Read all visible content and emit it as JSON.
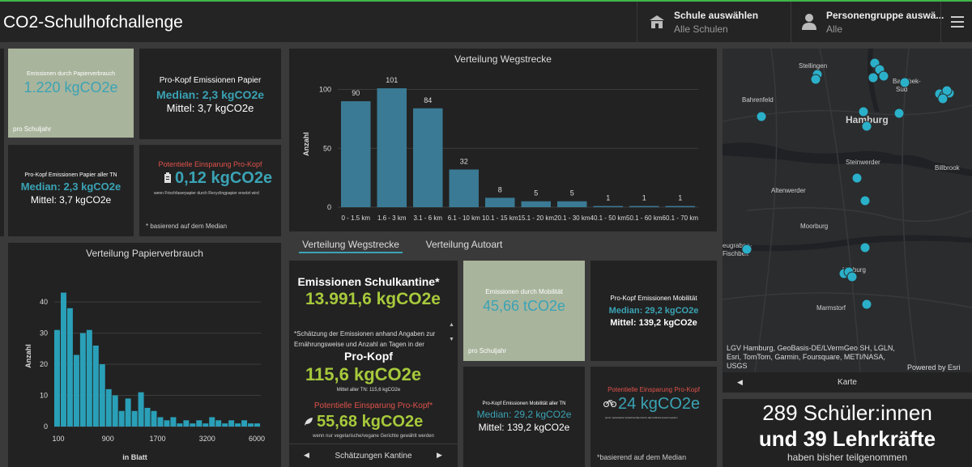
{
  "header": {
    "title": "CO2-Schulhofchallenge",
    "school_label": "Schule auswählen",
    "school_value": "Alle Schulen",
    "group_label": "Personengruppe auswä...",
    "group_value": "Alle"
  },
  "paper_total": {
    "label": "Emissionen durch Papierverbrauch",
    "value": "1.220 kgCO2e",
    "sub": "pro Schuljahr"
  },
  "paper_per_capita": {
    "title": "Pro-Kopf Emissionen Papier",
    "median": "Median: 2,3 kgCO2e",
    "mean": "Mittel: 3,7 kgCO2e"
  },
  "paper_all": {
    "title": "Pro-Kopf Emissionen Papier aller TN",
    "median": "Median: 2,3 kgCO2e",
    "mean": "Mittel: 3,7 kgCO2e"
  },
  "paper_saving": {
    "title": "Potentielle Einsparung Pro-Kopf",
    "value": "0,12 kgCO2e",
    "note": "wenn Frischfaserpapier durch Recyclingpapier ersetzt wird",
    "footnote": "* basierend auf dem Median"
  },
  "distance_chart": {
    "title": "Verteilung Wegstrecke"
  },
  "distance_tabs": [
    "Verteilung Wegstrecke",
    "Verteilung Autoart"
  ],
  "paper_chart": {
    "title": "Verteilung Papierverbrauch"
  },
  "canteen": {
    "title": "Emissionen Schulkantine*",
    "value": "13.991,6 kgCO2e",
    "note": "*Schätzung der Emissionen anhand Angaben zur Ernährungsweise und Anzahl an Tagen in der",
    "percap_title": "Pro-Kopf",
    "percap_value": "115,6 kgCO2e",
    "percap_sub": "Mittel aller TN: 115,6 kgCO2e",
    "saving_title": "Potentielle Einsparung Pro-Kopf*",
    "saving_value": "55,68 kgCO2e",
    "saving_note": "wenn nur vegetarische/vegane Gerichte gewählt werden",
    "nav_label": "Schätzungen Kantine"
  },
  "mobility_total": {
    "label": "Emissionen durch Mobilität",
    "value": "45,66 tCO2e",
    "sub": "pro Schuljahr"
  },
  "mobility_per_capita": {
    "title": "Pro-Kopf Emissionen Mobilität",
    "median": "Median: 29,2 kgCO2e",
    "mean": "Mittel: 139,2 kgCO2e"
  },
  "mobility_all": {
    "title": "Pro-Kopf Emissionen Mobilität aller TN",
    "median": "Median: 29,2 kgCO2e",
    "mean": "Mittel: 139,2 kgCO2e"
  },
  "mobility_saving": {
    "title": "Potentielle Einsparung Pro-Kopf",
    "value": "24 kgCO2e",
    "note": "wenn motorisierte Verkehrsmittel durch das Fahrrad ersetzt werden",
    "footnote": "*basierend auf dem Median"
  },
  "map": {
    "places": [
      "Stellingen",
      "Barmbek-Süd",
      "Bahrenfeld",
      "Hamburg",
      "Steinwerder",
      "Billbrook",
      "Altenwerder",
      "Moorburg",
      "Neugraben-Fischbek",
      "Harburg",
      "Marmstorf"
    ],
    "attribution": "LGV Hamburg, GeoBasis-DE/LVermGeo SH, LGLN, Esri, TomTom, Garmin, Foursquare, METI/NASA, USGS",
    "powered": "Powered by Esri",
    "nav_label": "Karte"
  },
  "participants": {
    "line1": "289 Schüler:innen",
    "line2": "und 39 Lehrkräfte",
    "line3": "haben bisher teilgenommen"
  },
  "chart_data": [
    {
      "type": "bar",
      "title": "Verteilung Wegstrecke",
      "ylabel": "Anzahl",
      "xlabel": "",
      "categories": [
        "0 - 1.5 km",
        "1.6 - 3 km",
        "3.1 - 6 km",
        "6.1 - 10 km",
        "10.1 - 15 km",
        "15.1 - 20 km",
        "20.1 - 30 km",
        "40.1 - 50 km",
        "50.1 - 60 km",
        "60.1 - 70 km"
      ],
      "values": [
        90,
        101,
        84,
        32,
        8,
        5,
        5,
        1,
        1,
        1
      ],
      "yticks": [
        0,
        50,
        100
      ],
      "ylim": [
        0,
        110
      ]
    },
    {
      "type": "bar",
      "title": "Verteilung Papierverbrauch",
      "ylabel": "Anzahl",
      "xlabel": "in Blatt",
      "xticks": [
        "100",
        "900",
        "1700",
        "3200",
        "6000"
      ],
      "yticks": [
        0,
        10,
        20,
        30,
        40
      ],
      "ylim": [
        0,
        46
      ],
      "values": [
        31,
        43,
        38,
        23,
        30,
        31,
        26,
        20,
        12,
        10,
        5,
        9,
        5,
        11,
        6,
        5,
        3,
        2,
        3,
        1,
        2,
        1,
        2,
        1,
        3,
        2,
        1,
        2,
        1,
        2,
        1,
        1
      ]
    }
  ]
}
